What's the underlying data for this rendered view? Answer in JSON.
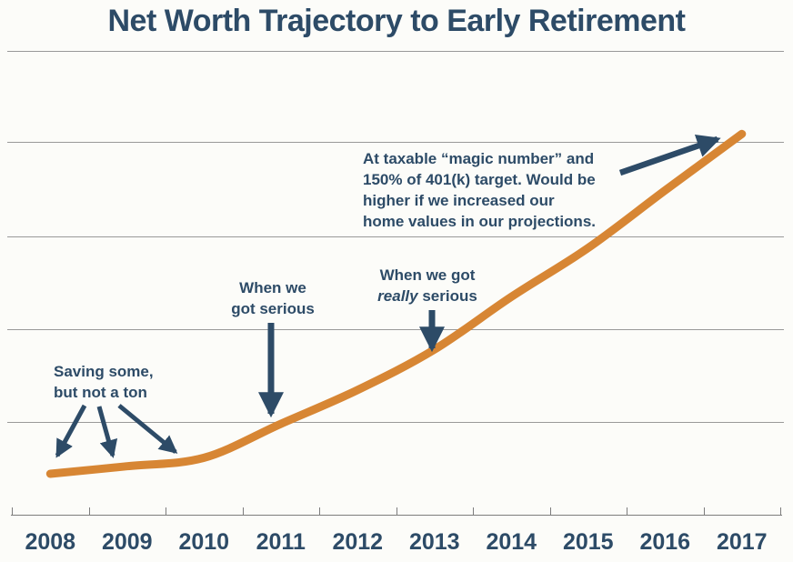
{
  "title": "Net Worth Trajectory to Early Retirement",
  "colors": {
    "line": "#d78634",
    "text_and_arrows": "#2d4b67",
    "gridline": "#999999",
    "background": "#fcfcf9"
  },
  "x_axis": {
    "labels": [
      "2008",
      "2009",
      "2010",
      "2011",
      "2012",
      "2013",
      "2014",
      "2015",
      "2016",
      "2017"
    ]
  },
  "chart_data": {
    "type": "line",
    "title": "Net Worth Trajectory to Early Retirement",
    "x": [
      2008,
      2009,
      2010,
      2011,
      2012,
      2013,
      2014,
      2015,
      2016,
      2017
    ],
    "series": [
      {
        "name": "Net worth",
        "values_gridline_units": [
          0.44,
          0.52,
          0.61,
          0.97,
          1.33,
          1.76,
          2.32,
          2.84,
          3.45,
          4.05
        ]
      }
    ],
    "xlabel": "",
    "ylabel": "",
    "y_axis_tick_labels": "none shown (unlabeled horizontal gridlines, 1 unit apart)",
    "ylim": [
      0,
      4.9
    ],
    "grid": "horizontal",
    "legend": "none",
    "annotations": [
      {
        "lines": [
          "Saving some,",
          "but not a ton"
        ],
        "points_to_years": [
          2008,
          2009,
          2010
        ]
      },
      {
        "lines": [
          "When we",
          "got serious"
        ],
        "points_to_years": [
          2011
        ]
      },
      {
        "line1": "When we got",
        "line2_italic": "really",
        "line2_rest": " serious",
        "points_to_years": [
          2013
        ]
      },
      {
        "lines": [
          "At taxable “magic number” and",
          "150% of 401(k) target. Would be",
          "higher if we increased our",
          "home values in our projections."
        ],
        "points_to_years": [
          2017
        ]
      }
    ]
  }
}
